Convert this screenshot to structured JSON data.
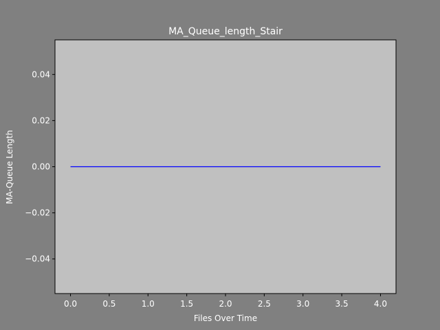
{
  "chart_data": {
    "type": "line",
    "title": "MA_Queue_length_Stair",
    "xlabel": "Files Over Time",
    "ylabel": "MA-Queue Length",
    "xlim": [
      -0.2,
      4.2
    ],
    "ylim": [
      -0.055,
      0.055
    ],
    "xticks": [
      0.0,
      0.5,
      1.0,
      1.5,
      2.0,
      2.5,
      3.0,
      3.5,
      4.0
    ],
    "xtick_labels": [
      "0.0",
      "0.5",
      "1.0",
      "1.5",
      "2.0",
      "2.5",
      "3.0",
      "3.5",
      "4.0"
    ],
    "yticks": [
      -0.04,
      -0.02,
      0.0,
      0.02,
      0.04
    ],
    "ytick_labels": [
      "−0.04",
      "−0.02",
      "0.00",
      "0.02",
      "0.04"
    ],
    "grid": false,
    "series": [
      {
        "x": [
          0,
          1,
          2,
          3,
          4
        ],
        "y": [
          0,
          0,
          0,
          0,
          0
        ],
        "color": "#0000ff"
      }
    ]
  },
  "colors": {
    "figure_bg": "#808080",
    "axes_bg": "#c0c0c0",
    "text": "#ffffff",
    "line": "#0000ff"
  }
}
